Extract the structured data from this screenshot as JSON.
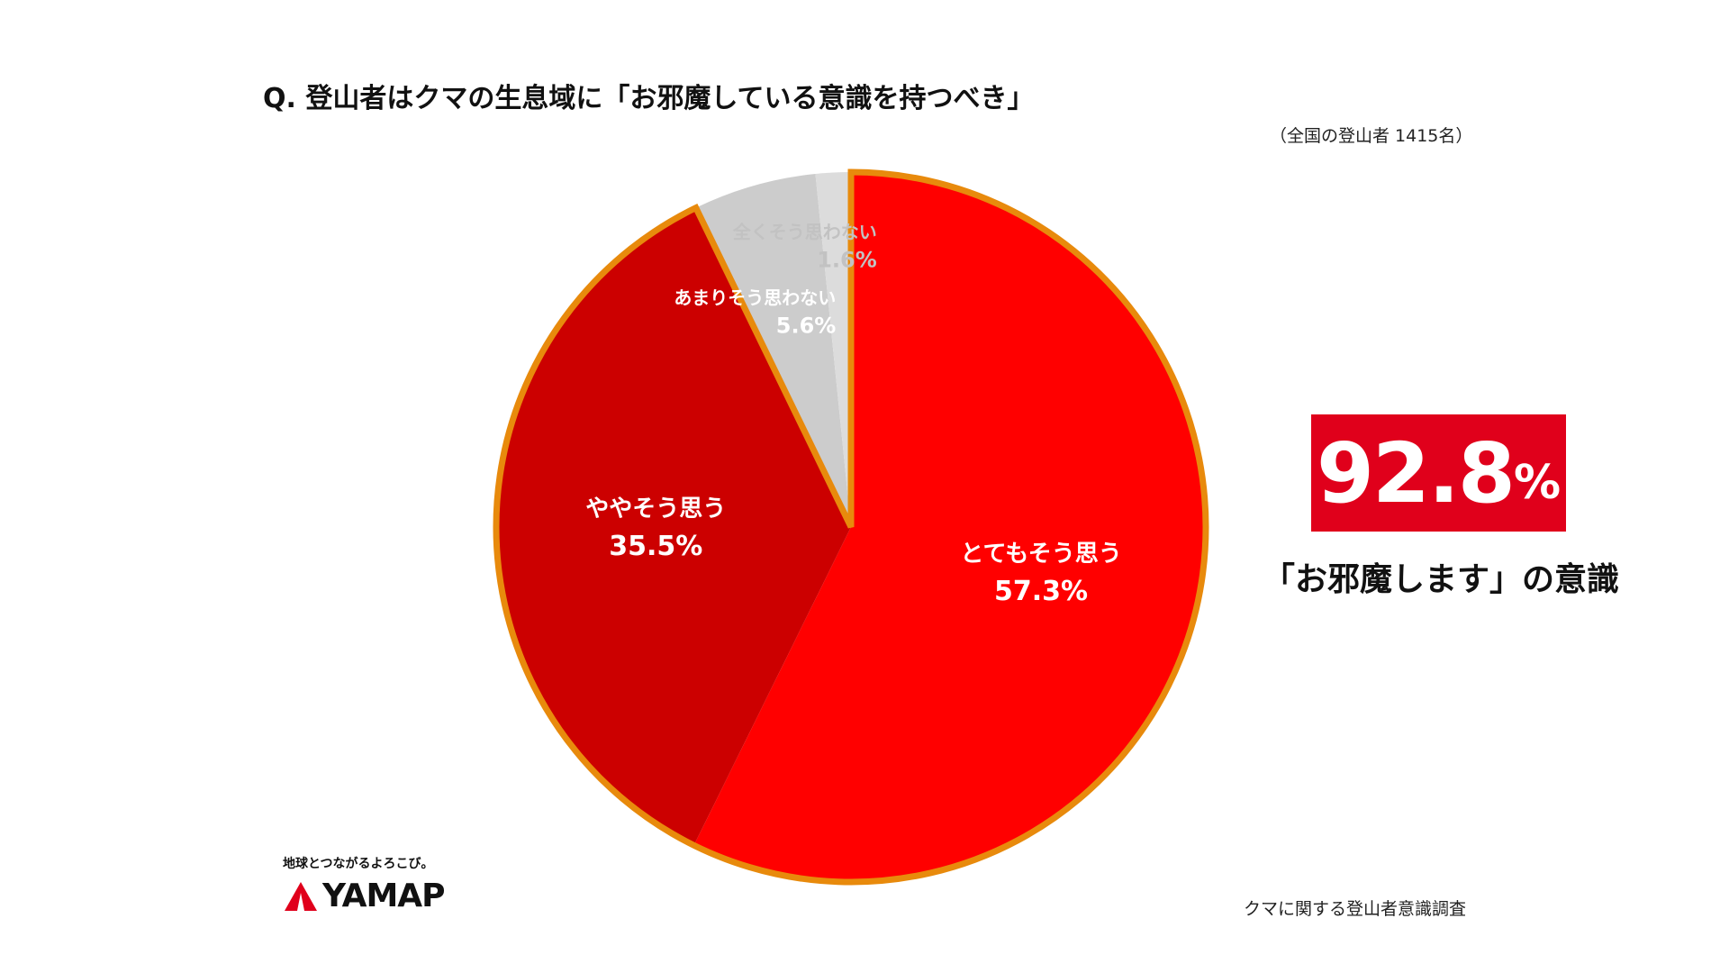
{
  "chart_data": {
    "type": "pie",
    "title": "Q. 登山者はクマの生息域に「お邪魔している意識を持つべき」",
    "subtitle": "（全国の登山者 1415名）",
    "start": "top",
    "direction": "clockwise",
    "slices": [
      {
        "label": "とてもそう思う",
        "value": 57.3,
        "display": "57.3%",
        "color": "#ff0000",
        "text_color": "#ffffff"
      },
      {
        "label": "ややそう思う",
        "value": 35.5,
        "display": "35.5%",
        "color": "#cc0000",
        "text_color": "#ffffff"
      },
      {
        "label": "あまりそう思わない",
        "value": 5.6,
        "display": "5.6%",
        "color": "#cccccc",
        "text_color": "#ffffff"
      },
      {
        "label": "全くそう思わない",
        "value": 1.6,
        "display": "1.6%",
        "color": "#dcdcdc",
        "text_color": "#c2c2c2"
      }
    ],
    "highlight_outline_color": "#e88a0c"
  },
  "highlight": {
    "value": "92.8",
    "unit": "%",
    "caption": "「お邪魔します」の意識",
    "color": "#e0001b"
  },
  "logo": {
    "tagline": "地球とつながるよろこび。",
    "name": "YAMAP",
    "color": "#e0001b"
  },
  "source": "クマに関する登山者意識調査"
}
